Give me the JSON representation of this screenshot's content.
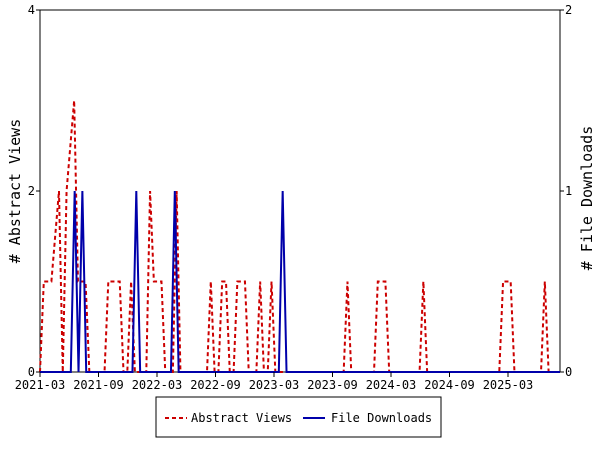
{
  "chart_data": {
    "type": "line",
    "x_tick_labels": [
      "2021-03",
      "2021-09",
      "2022-03",
      "2022-09",
      "2023-03",
      "2023-09",
      "2024-03",
      "2024-09",
      "2025-03"
    ],
    "ylabel_left": "# Abstract Views",
    "ylabel_right": "# File Downloads",
    "ylim_left": [
      0,
      4
    ],
    "ylim_right": [
      0,
      2
    ],
    "yticks_left": [
      "0",
      "2",
      "4"
    ],
    "yticks_right": [
      "0",
      "1",
      "2"
    ],
    "legend_position": "bottom",
    "grid": false,
    "series": [
      {
        "name": "Abstract Views",
        "axis": "left",
        "color": "#cc0000",
        "style": "dashed",
        "values": [
          0,
          1,
          1,
          1,
          1.5,
          2,
          0,
          2,
          2.5,
          3,
          1,
          1,
          1,
          0,
          0,
          0,
          0,
          0,
          1,
          1,
          1,
          1,
          0,
          0,
          1,
          0,
          0,
          0,
          0,
          2,
          1,
          1,
          1,
          0,
          0,
          0,
          2,
          0,
          0,
          0,
          0,
          0,
          0,
          0,
          0,
          1,
          0,
          0,
          1,
          1,
          0,
          0,
          1,
          1,
          1,
          0,
          0,
          0,
          1,
          0,
          0,
          1,
          0,
          0,
          0,
          0,
          0,
          0,
          0,
          0,
          0,
          0,
          0,
          0,
          0,
          0,
          0,
          0,
          0,
          0,
          0,
          1,
          0,
          0,
          0,
          0,
          0,
          0,
          0,
          1,
          1,
          1,
          0,
          0,
          0,
          0,
          0,
          0,
          0,
          0,
          0,
          1,
          0,
          0,
          0,
          0,
          0,
          0,
          0,
          0,
          0,
          0,
          0,
          0,
          0,
          0,
          0,
          0,
          0,
          0,
          0,
          0,
          1,
          1,
          1,
          0,
          0,
          0,
          0,
          0,
          0,
          0,
          0,
          1,
          0,
          0,
          0,
          0
        ]
      },
      {
        "name": "File Downloads",
        "axis": "right",
        "color": "#0000aa",
        "style": "solid",
        "values": [
          0,
          0,
          0,
          0,
          0,
          0,
          0,
          0,
          0,
          1,
          0,
          1,
          0,
          0,
          0,
          0,
          0,
          0,
          0,
          0,
          0,
          0,
          0,
          0,
          0,
          1,
          0,
          0,
          0,
          0,
          0,
          0,
          0,
          0,
          0,
          1,
          0,
          0,
          0,
          0,
          0,
          0,
          0,
          0,
          0,
          0,
          0,
          0,
          0,
          0,
          0,
          0,
          0,
          0,
          0,
          0,
          0,
          0,
          0,
          0,
          0,
          0,
          0,
          1,
          0,
          0,
          0,
          0,
          0,
          0,
          0,
          0,
          0,
          0,
          0,
          0,
          0,
          0,
          0,
          0,
          0,
          0,
          0,
          0,
          0,
          0,
          0,
          0,
          0,
          0,
          0,
          0,
          0,
          0,
          0,
          0,
          0,
          0,
          0,
          0,
          0,
          0,
          0,
          0,
          0,
          0,
          0,
          0,
          0,
          0,
          0,
          0,
          0,
          0,
          0,
          0,
          0,
          0,
          0,
          0,
          0,
          0,
          0,
          0,
          0,
          0,
          0,
          0,
          0,
          0,
          0,
          0,
          0,
          0,
          0,
          0
        ]
      }
    ]
  }
}
